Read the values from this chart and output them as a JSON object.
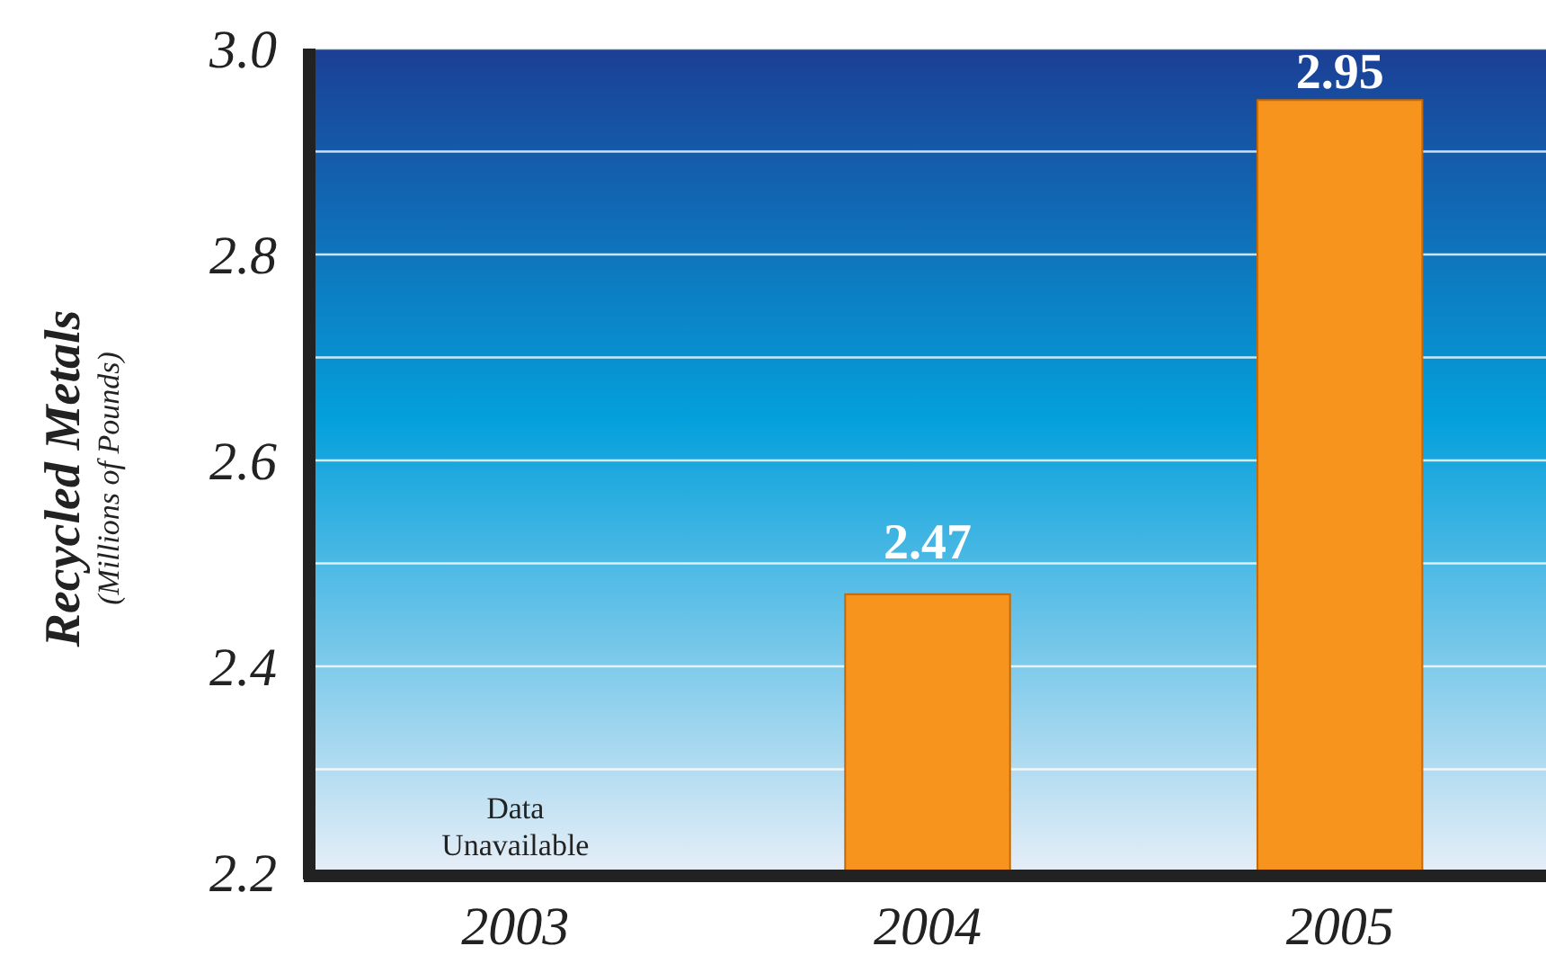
{
  "chart_data": {
    "type": "bar",
    "ylabel": "Recycled Metals",
    "categories": [
      "2003",
      "2004",
      "2005"
    ],
    "values": [
      null,
      2.47,
      2.95
    ],
    "color": "#f7941d",
    "ylim": [
      2.2,
      3.0
    ],
    "yticks": [
      2.2,
      {
        "value": 2.3,
        "label": null
      },
      2.4,
      {
        "value": 2.5,
        "label": null
      },
      2.6,
      {
        "value": 2.7,
        "label": null
      },
      2.8,
      {
        "value": 2.9,
        "label": null
      },
      {
        "value": 3.0,
        "label": "3.0"
      }
    ],
    "grid": true,
    "data_labels": true,
    "annotations": [
      "(Millions of Pounds)",
      "Data Unavailable"
    ]
  }
}
